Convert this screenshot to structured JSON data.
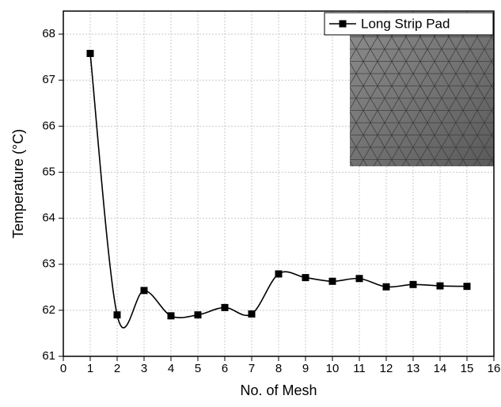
{
  "chart_data": {
    "type": "line",
    "x_label": "No. of Mesh",
    "y_label": "Temperature (°C)",
    "x": [
      1,
      2,
      3,
      4,
      5,
      6,
      7,
      8,
      9,
      10,
      11,
      12,
      13,
      14,
      15
    ],
    "series": [
      {
        "name": "Long Strip Pad",
        "color": "#000000",
        "values": [
          67.58,
          61.9,
          62.43,
          61.88,
          61.9,
          62.06,
          61.92,
          62.79,
          62.71,
          62.63,
          62.69,
          62.51,
          62.56,
          62.53,
          62.52
        ]
      }
    ],
    "xlim": [
      0,
      16
    ],
    "ylim": [
      61,
      68.5
    ],
    "xticks": [
      0,
      1,
      2,
      3,
      4,
      5,
      6,
      7,
      8,
      9,
      10,
      11,
      12,
      13,
      14,
      15,
      16
    ],
    "yticks": [
      61,
      62,
      63,
      64,
      65,
      66,
      67,
      68
    ],
    "grid": true,
    "legend": "top-right"
  }
}
